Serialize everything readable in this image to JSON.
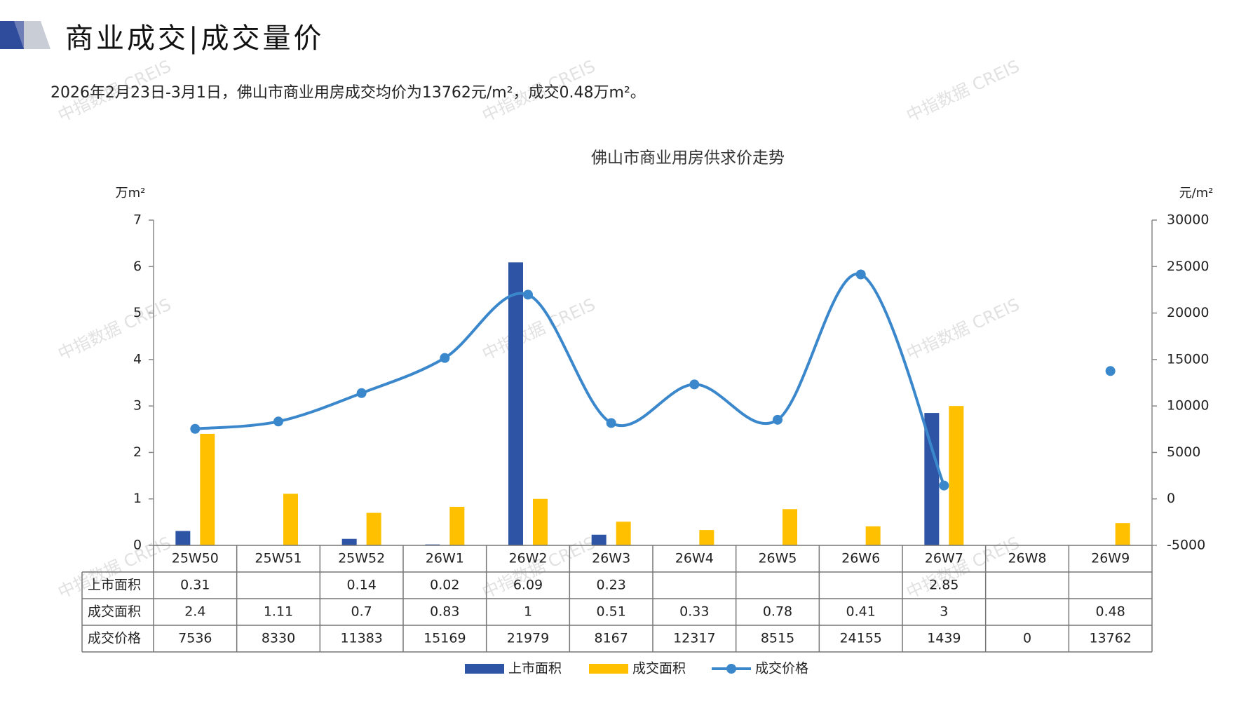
{
  "header": {
    "title": "商业成交|成交量价",
    "summary": "2026年2月23日-3月1日，佛山市商业用房成交均价为13762元/m²，成交0.48万m²。"
  },
  "watermark": "中指数据 CREIS",
  "colors": {
    "listed": "#2E55A5",
    "traded": "#FFC000",
    "price": "#3A87CC",
    "deco_dark": "#2F4B9C",
    "deco_light": "#C8CDD6"
  },
  "chart_data": {
    "type": "bar+line",
    "title": "佛山市商业用房供求价走势",
    "y_left_unit": "万m²",
    "y_right_unit": "元/m²",
    "y_left_range": [
      0,
      7
    ],
    "y_left_ticks": [
      "0",
      "1",
      "2",
      "3",
      "4",
      "5",
      "6",
      "7"
    ],
    "y_right_range": [
      -5000,
      30000
    ],
    "y_right_ticks": [
      "-5000",
      "0",
      "5000",
      "10000",
      "15000",
      "20000",
      "25000",
      "30000"
    ],
    "categories": [
      "25W50",
      "25W51",
      "25W52",
      "26W1",
      "26W2",
      "26W3",
      "26W4",
      "26W5",
      "26W6",
      "26W7",
      "26W8",
      "26W9"
    ],
    "series": [
      {
        "name": "上市面积",
        "type": "bar",
        "axis": "left",
        "values": [
          0.31,
          null,
          0.14,
          0.02,
          6.09,
          0.23,
          null,
          null,
          null,
          2.85,
          null,
          null
        ],
        "labels": [
          "0.31",
          "",
          "0.14",
          "0.02",
          "6.09",
          "0.23",
          "",
          "",
          "",
          "2.85",
          "",
          ""
        ]
      },
      {
        "name": "成交面积",
        "type": "bar",
        "axis": "left",
        "values": [
          2.4,
          1.11,
          0.7,
          0.83,
          1,
          0.51,
          0.33,
          0.78,
          0.41,
          3,
          null,
          0.48
        ],
        "labels": [
          "2.4",
          "1.11",
          "0.7",
          "0.83",
          "1",
          "0.51",
          "0.33",
          "0.78",
          "0.41",
          "3",
          "",
          "0.48"
        ]
      },
      {
        "name": "成交价格",
        "type": "line",
        "axis": "right",
        "values": [
          7536,
          8330,
          11383,
          15169,
          21979,
          8167,
          12317,
          8515,
          24155,
          1439,
          0,
          13762
        ],
        "labels": [
          "7536",
          "8330",
          "11383",
          "15169",
          "21979",
          "8167",
          "12317",
          "8515",
          "24155",
          "1439",
          "0",
          "13762"
        ]
      }
    ],
    "legend": [
      "上市面积",
      "成交面积",
      "成交价格"
    ],
    "legend_position": "bottom"
  }
}
